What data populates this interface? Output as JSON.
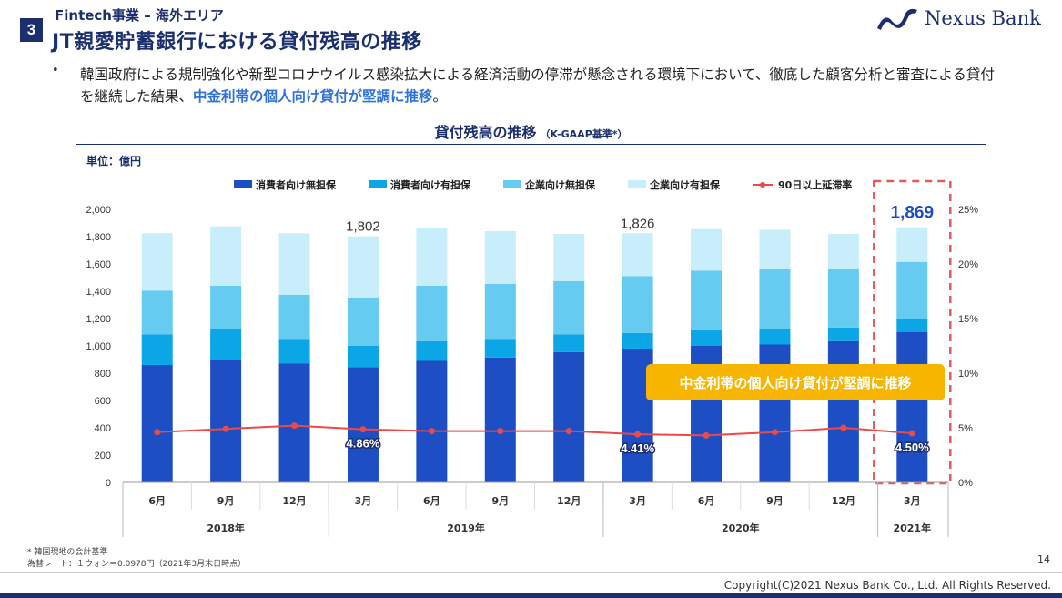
{
  "header": {
    "section_number": "3",
    "category": "Fintech事業 – 海外エリア",
    "title": "JT親愛貯蓄銀行における貸付残高の推移"
  },
  "logo": {
    "text": "Nexus Bank",
    "icon": "nexus-wave-logo-icon"
  },
  "body": {
    "bullet": "•",
    "text_before": "韓国政府による規制強化や新型コロナウイルス感染拡大による経済活動の停滞が懸念される環境下において、徹底した顧客分析と審査による貸付を継続した結果、",
    "text_highlight": "中金利帯の個人向け貸付が堅調に推移",
    "text_after": "。"
  },
  "chart_title": {
    "main": "貸付残高の推移",
    "sub": "（K-GAAP基準*）"
  },
  "unit_label": "単位：億円",
  "colors": {
    "consumer_unsecured": "#1e4ec4",
    "consumer_secured": "#0aa6e6",
    "corporate_unsecured": "#66cbf0",
    "corporate_secured": "#c9eefb",
    "delinquency": "#ea4a4a",
    "callout": "#f7b500",
    "highlight_box": "#e55a5a",
    "navy": "#1b2f6e"
  },
  "chart_data": {
    "type": "bar",
    "stacked": true,
    "categories": [
      "6月",
      "9月",
      "12月",
      "3月",
      "6月",
      "9月",
      "12月",
      "3月",
      "6月",
      "9月",
      "12月",
      "3月"
    ],
    "year_groups": [
      {
        "label": "2018年",
        "start": 0,
        "end": 2
      },
      {
        "label": "2019年",
        "start": 3,
        "end": 6
      },
      {
        "label": "2020年",
        "start": 7,
        "end": 10
      },
      {
        "label": "2021年",
        "start": 11,
        "end": 11
      }
    ],
    "series": [
      {
        "name": "消費者向け無担保",
        "values": [
          860,
          895,
          870,
          845,
          890,
          915,
          955,
          980,
          1000,
          1010,
          1035,
          1100
        ]
      },
      {
        "name": "消費者向け有担保",
        "values": [
          225,
          225,
          180,
          155,
          145,
          135,
          130,
          115,
          115,
          110,
          100,
          95
        ]
      },
      {
        "name": "企業向け無担保",
        "values": [
          320,
          320,
          325,
          355,
          405,
          405,
          390,
          415,
          435,
          440,
          425,
          420
        ]
      },
      {
        "name": "企業向け有担保",
        "values": [
          420,
          435,
          450,
          447,
          425,
          385,
          345,
          315,
          305,
          290,
          260,
          254
        ]
      }
    ],
    "line_series": {
      "name": "90日以上延滞率",
      "values": [
        4.6,
        4.9,
        5.2,
        4.86,
        4.7,
        4.7,
        4.7,
        4.41,
        4.3,
        4.6,
        5.0,
        4.5
      ],
      "labels": {
        "3": "4.86%",
        "7": "4.41%",
        "11": "4.50%"
      }
    },
    "total_labels": {
      "3": "1,802",
      "7": "1,826",
      "11": "1,869"
    },
    "y_left": {
      "min": 0,
      "max": 2000,
      "ticks": [
        "0",
        "200",
        "400",
        "600",
        "800",
        "1,000",
        "1,200",
        "1,400",
        "1,600",
        "1,800",
        "2,000"
      ]
    },
    "y_right": {
      "min": 0,
      "max": 25,
      "ticks": [
        "0%",
        "5%",
        "10%",
        "15%",
        "20%",
        "25%"
      ]
    },
    "legend_position": "top-right",
    "callout": "中金利帯の個人向け貸付が堅調に推移",
    "grid": false
  },
  "footnote": {
    "line1": "* 韓国現地の会計基準",
    "line2": "為替レート：１ウォン＝0.0978円（2021年3月末日時点）"
  },
  "page_number": "14",
  "copyright": "Copyright(C)2021 Nexus Bank Co., Ltd. All Rights Reserved."
}
